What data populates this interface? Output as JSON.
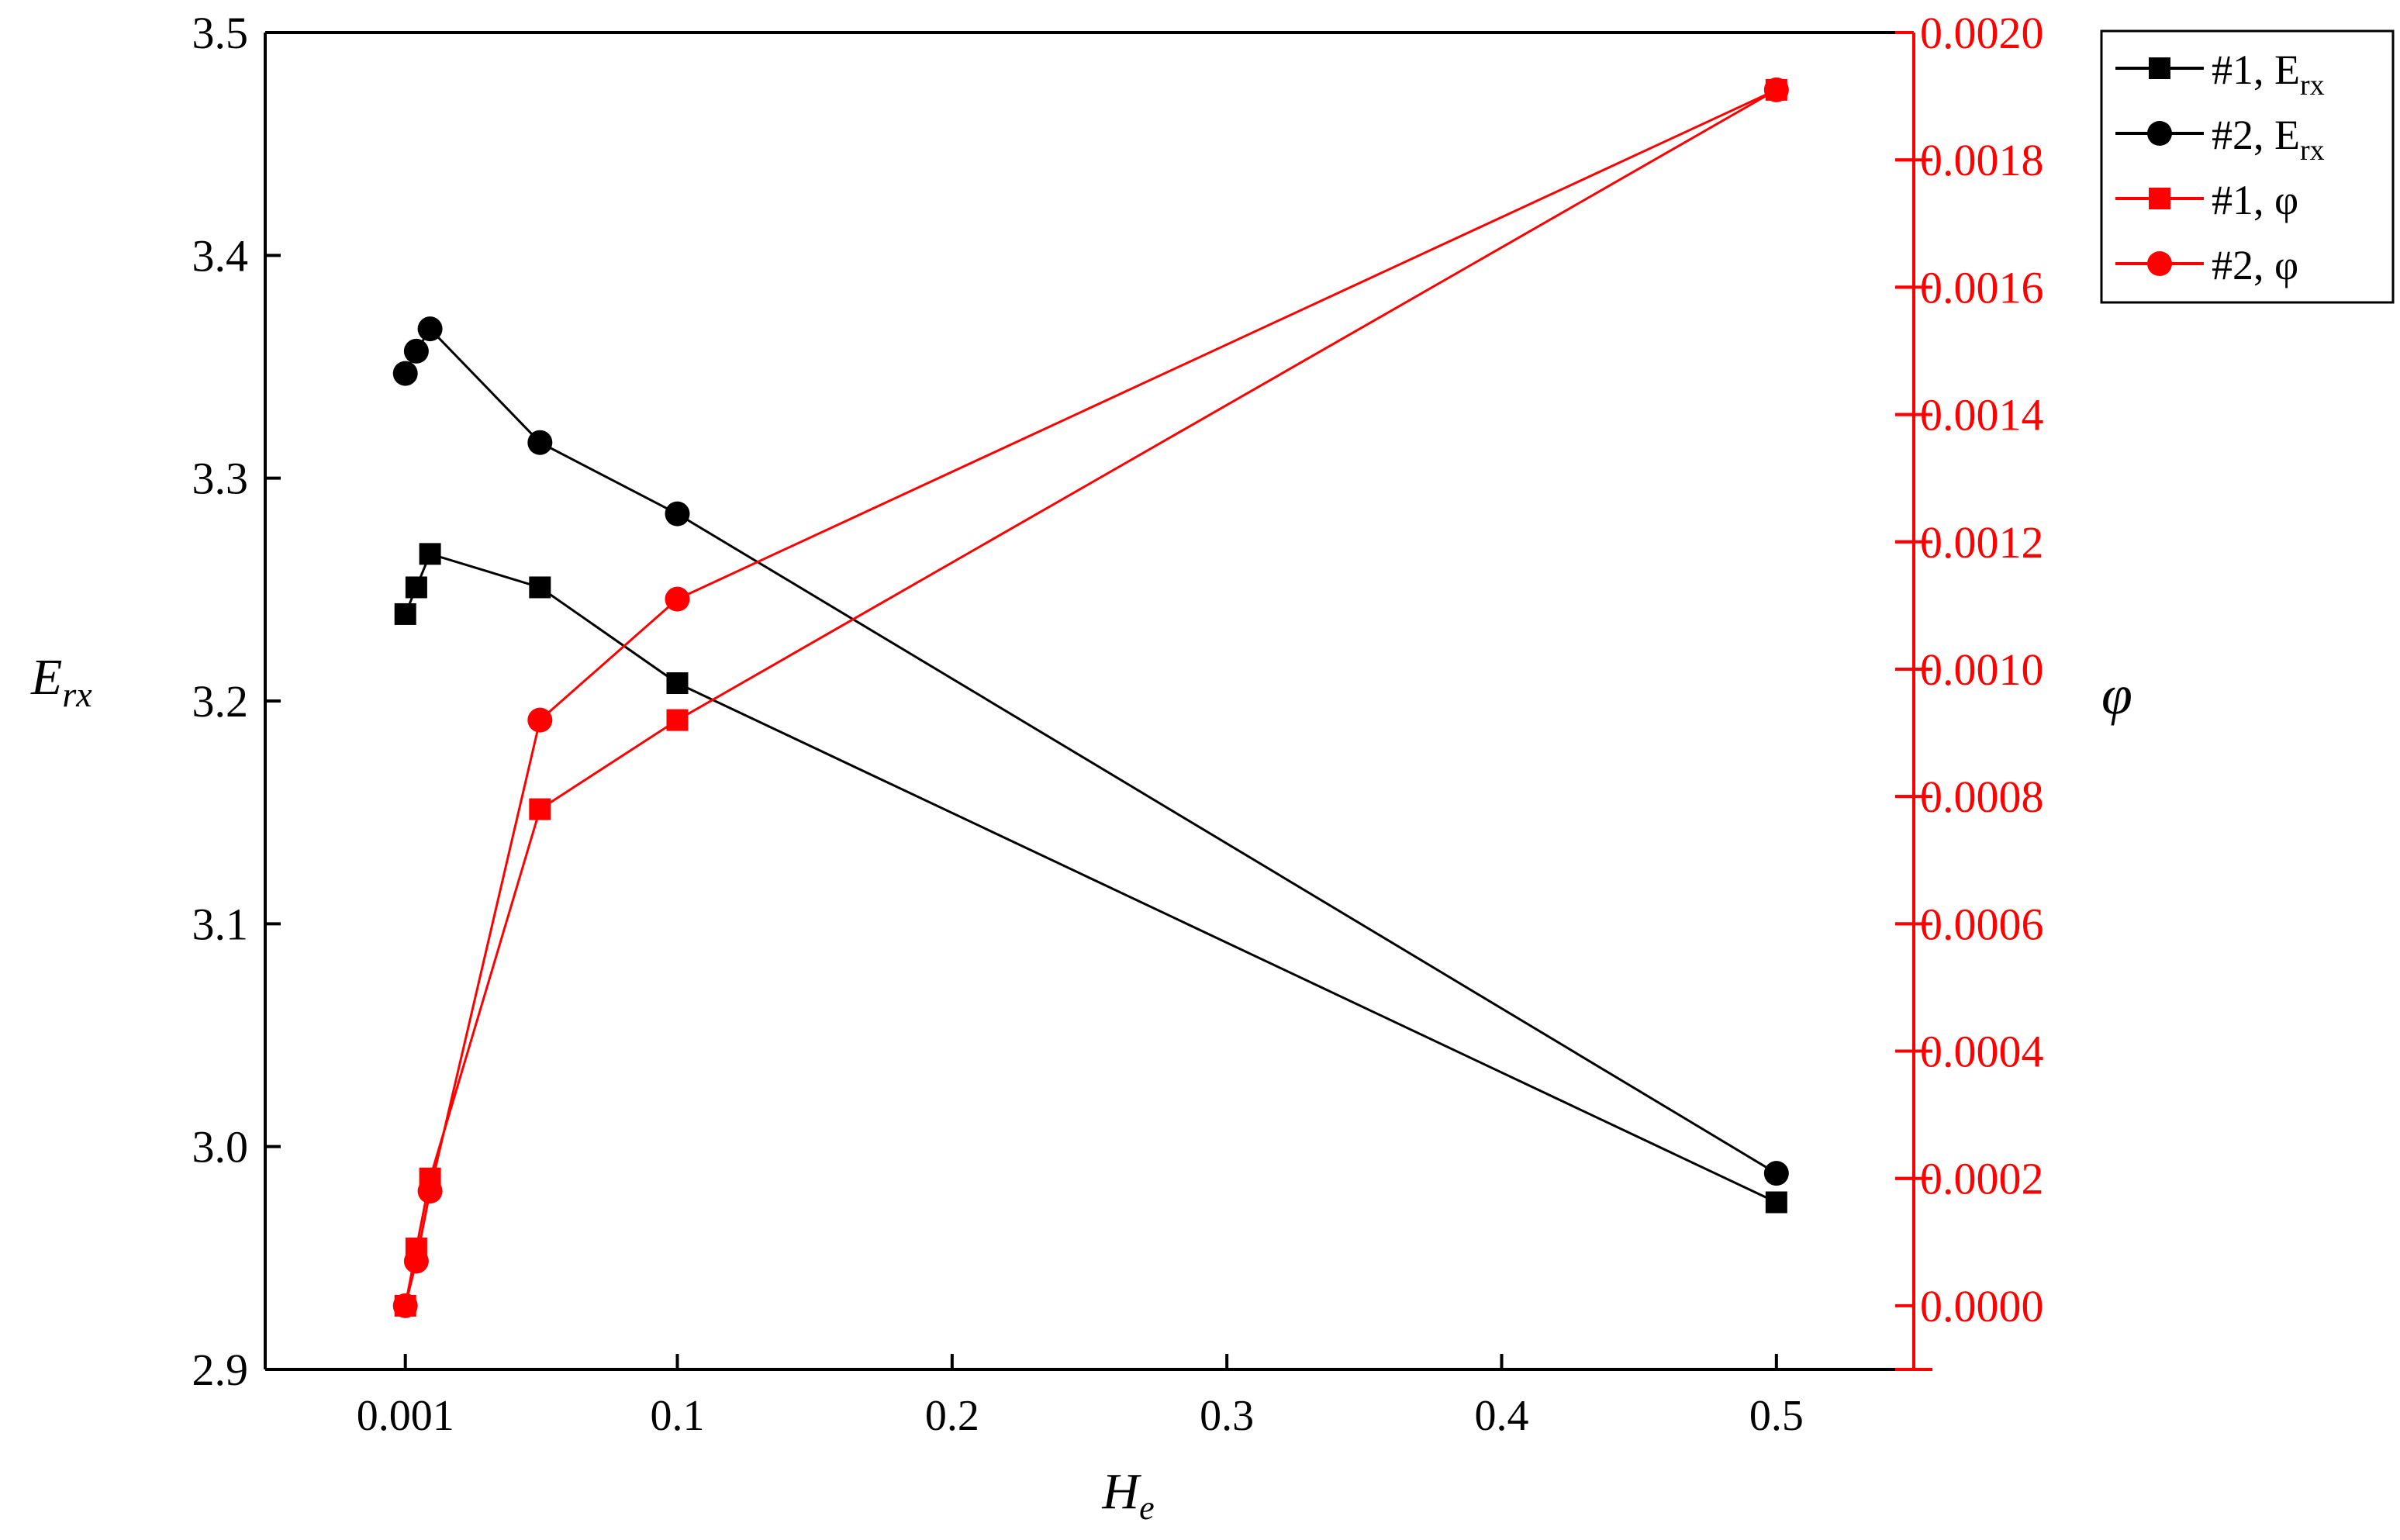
{
  "chart_data": {
    "type": "line",
    "xlabel": {
      "main": "H",
      "sub": "e"
    },
    "ylabel_left": {
      "main": "E",
      "sub": "rx"
    },
    "ylabel_right": "φ",
    "xlim": [
      -0.05,
      0.55
    ],
    "ylim_left": [
      2.9,
      3.5
    ],
    "ylim_right": [
      -0.0001,
      0.002
    ],
    "x_ticks": [
      {
        "v": 0.001,
        "label": "0.001"
      },
      {
        "v": 0.1,
        "label": "0.1"
      },
      {
        "v": 0.2,
        "label": "0.2"
      },
      {
        "v": 0.3,
        "label": "0.3"
      },
      {
        "v": 0.4,
        "label": "0.4"
      },
      {
        "v": 0.5,
        "label": "0.5"
      }
    ],
    "y_left_ticks": [
      {
        "v": 2.9,
        "label": "2.9"
      },
      {
        "v": 3.0,
        "label": "3.0"
      },
      {
        "v": 3.1,
        "label": "3.1"
      },
      {
        "v": 3.2,
        "label": "3.2"
      },
      {
        "v": 3.3,
        "label": "3.3"
      },
      {
        "v": 3.4,
        "label": "3.4"
      },
      {
        "v": 3.5,
        "label": "3.5"
      }
    ],
    "y_right_ticks": [
      {
        "v": 0.0,
        "label": "0.0000"
      },
      {
        "v": 0.0002,
        "label": "0.0002"
      },
      {
        "v": 0.0004,
        "label": "0.0004"
      },
      {
        "v": 0.0006,
        "label": "0.0006"
      },
      {
        "v": 0.0008,
        "label": "0.0008"
      },
      {
        "v": 0.001,
        "label": "0.0010"
      },
      {
        "v": 0.0012,
        "label": "0.0012"
      },
      {
        "v": 0.0014,
        "label": "0.0014"
      },
      {
        "v": 0.0016,
        "label": "0.0016"
      },
      {
        "v": 0.0018,
        "label": "0.0018"
      },
      {
        "v": 0.002,
        "label": "0.0020"
      }
    ],
    "series": [
      {
        "name": "#1,  E",
        "name_sub": "rx",
        "axis": "left",
        "color": "#000000",
        "marker": "square",
        "x": [
          0.001,
          0.005,
          0.01,
          0.05,
          0.1,
          0.5
        ],
        "y": [
          3.239,
          3.251,
          3.266,
          3.251,
          3.208,
          2.975
        ]
      },
      {
        "name": "#2,  E",
        "name_sub": "rx",
        "axis": "left",
        "color": "#000000",
        "marker": "circle",
        "x": [
          0.001,
          0.005,
          0.01,
          0.05,
          0.1,
          0.5
        ],
        "y": [
          3.347,
          3.357,
          3.367,
          3.316,
          3.284,
          2.988
        ]
      },
      {
        "name": "#1,  φ",
        "axis": "right",
        "color": "#ff0000",
        "marker": "square",
        "x": [
          0.001,
          0.005,
          0.01,
          0.05,
          0.1,
          0.5
        ],
        "y": [
          0.0,
          9e-05,
          0.0002,
          0.00078,
          0.00092,
          0.00191
        ]
      },
      {
        "name": "#2,  φ",
        "axis": "right",
        "color": "#ff0000",
        "marker": "circle",
        "x": [
          0.001,
          0.005,
          0.01,
          0.05,
          0.1,
          0.5
        ],
        "y": [
          0.0,
          7e-05,
          0.00018,
          0.00092,
          0.00111,
          0.00191
        ]
      }
    ],
    "legend_position": "outside-top-right"
  }
}
